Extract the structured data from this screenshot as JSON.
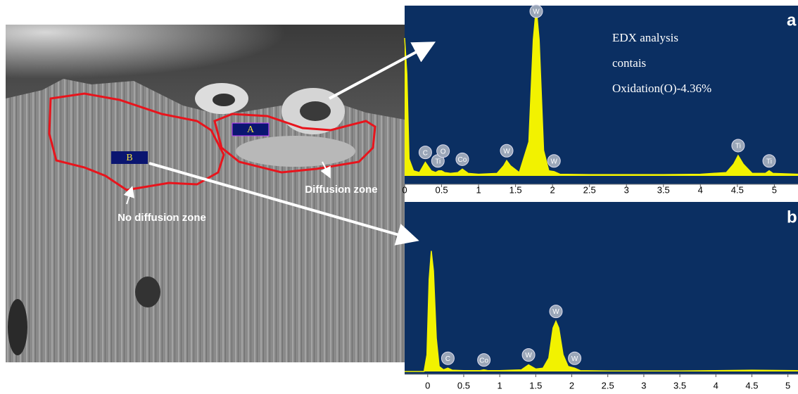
{
  "image": {
    "regions": [
      "A",
      "B"
    ],
    "zones": [
      "Diffusion zone",
      "No diffusion zone"
    ]
  },
  "chart_data": [
    {
      "type": "line",
      "label": "a",
      "color": "#f2f200",
      "background": "#0b2f62",
      "annotations": [
        "EDX analysis",
        "contais",
        "Oxidation(O)-4.36%"
      ],
      "x": [
        0,
        0.03,
        0.06,
        0.12,
        0.2,
        0.28,
        0.36,
        0.42,
        0.46,
        0.5,
        0.54,
        0.62,
        0.72,
        0.78,
        0.86,
        1.0,
        1.25,
        1.34,
        1.38,
        1.43,
        1.55,
        1.68,
        1.74,
        1.78,
        1.82,
        1.88,
        1.95,
        2.02,
        2.1,
        2.5,
        3.0,
        3.5,
        4.0,
        4.35,
        4.45,
        4.51,
        4.58,
        4.7,
        4.88,
        4.93,
        4.98,
        5.32
      ],
      "values": [
        81,
        60,
        10,
        3,
        2,
        8,
        3,
        2,
        3,
        3,
        2,
        1.5,
        2,
        4,
        1.5,
        1,
        1.5,
        6,
        9,
        6,
        2,
        20,
        80,
        99,
        80,
        15,
        3,
        2.5,
        1,
        0.8,
        0.8,
        0.8,
        1,
        2,
        7,
        12,
        7,
        1.5,
        1.5,
        3,
        1.5,
        1
      ],
      "peaks": [
        {
          "label": "C",
          "x": 0.28
        },
        {
          "label": "Ti",
          "x": 0.45
        },
        {
          "label": "O",
          "x": 0.52
        },
        {
          "label": "Co",
          "x": 0.78
        },
        {
          "label": "W",
          "x": 1.38
        },
        {
          "label": "W",
          "x": 1.78
        },
        {
          "label": "W",
          "x": 2.02
        },
        {
          "label": "Ti",
          "x": 4.51
        },
        {
          "label": "Ti",
          "x": 4.93
        }
      ],
      "xlim": [
        0,
        5.32
      ],
      "ylim": [
        0,
        100
      ],
      "xticks": [
        0,
        0.5,
        1,
        1.5,
        2,
        2.5,
        3,
        3.5,
        4,
        4.5,
        5
      ]
    },
    {
      "type": "line",
      "label": "b",
      "color": "#f2f200",
      "background": "#0b2f62",
      "x": [
        -0.32,
        -0.05,
        -0.01,
        0.02,
        0.05,
        0.08,
        0.12,
        0.16,
        0.22,
        0.28,
        0.34,
        0.5,
        0.72,
        0.78,
        0.84,
        1.0,
        1.3,
        1.4,
        1.5,
        1.6,
        1.68,
        1.74,
        1.78,
        1.82,
        1.88,
        1.95,
        2.04,
        2.12,
        2.5,
        3.0,
        3.5,
        4.0,
        4.5,
        5.14
      ],
      "values": [
        0,
        0,
        10,
        55,
        72,
        60,
        20,
        3,
        1,
        2,
        0.8,
        0.5,
        0.5,
        1,
        0.5,
        0.5,
        1,
        4,
        1.5,
        2,
        8,
        26,
        30,
        26,
        10,
        3,
        2,
        0.5,
        0.3,
        0.3,
        0.3,
        0.5,
        0.8,
        0.5
      ],
      "peaks": [
        {
          "label": "C",
          "x": 0.28
        },
        {
          "label": "Co",
          "x": 0.78
        },
        {
          "label": "W",
          "x": 1.4
        },
        {
          "label": "W",
          "x": 1.78
        },
        {
          "label": "W",
          "x": 2.04
        }
      ],
      "xlim": [
        -0.32,
        5.14
      ],
      "ylim": [
        0,
        100
      ],
      "xticks": [
        0,
        0.5,
        1,
        1.5,
        2,
        2.5,
        3,
        3.5,
        4,
        4.5,
        5
      ]
    }
  ]
}
